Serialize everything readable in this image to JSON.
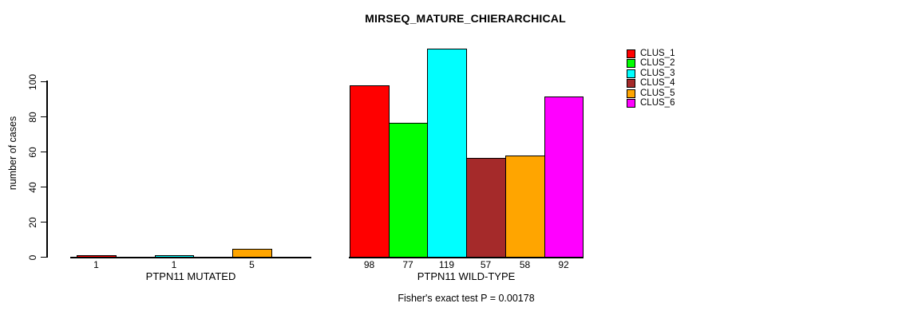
{
  "chart_data": {
    "type": "bar",
    "title": "MIRSEQ_MATURE_CHIERARCHICAL",
    "ylabel": "number of cases",
    "yticks": [
      0,
      20,
      40,
      60,
      80,
      100
    ],
    "ylim": [
      0,
      120
    ],
    "grid": false,
    "legend_position": "top-right",
    "categories": [
      "PTPN11 MUTATED",
      "PTPN11 WILD-TYPE"
    ],
    "series": [
      {
        "name": "CLUS_1",
        "color": "#FF0000",
        "values": [
          1,
          98
        ]
      },
      {
        "name": "CLUS_2",
        "color": "#00FF00",
        "values": [
          0,
          77
        ]
      },
      {
        "name": "CLUS_3",
        "color": "#00FFFF",
        "values": [
          1,
          119
        ]
      },
      {
        "name": "CLUS_4",
        "color": "#A52A2A",
        "values": [
          0,
          57
        ]
      },
      {
        "name": "CLUS_5",
        "color": "#FFA500",
        "values": [
          5,
          58
        ]
      },
      {
        "name": "CLUS_6",
        "color": "#FF00FF",
        "values": [
          0,
          92
        ]
      }
    ],
    "bar_value_labels": {
      "PTPN11 MUTATED": [
        "1",
        "1",
        "5"
      ],
      "PTPN11 WILD-TYPE": [
        "98",
        "77",
        "119",
        "57",
        "58",
        "92"
      ]
    },
    "footnote": "Fisher's exact test P = 0.00178"
  }
}
